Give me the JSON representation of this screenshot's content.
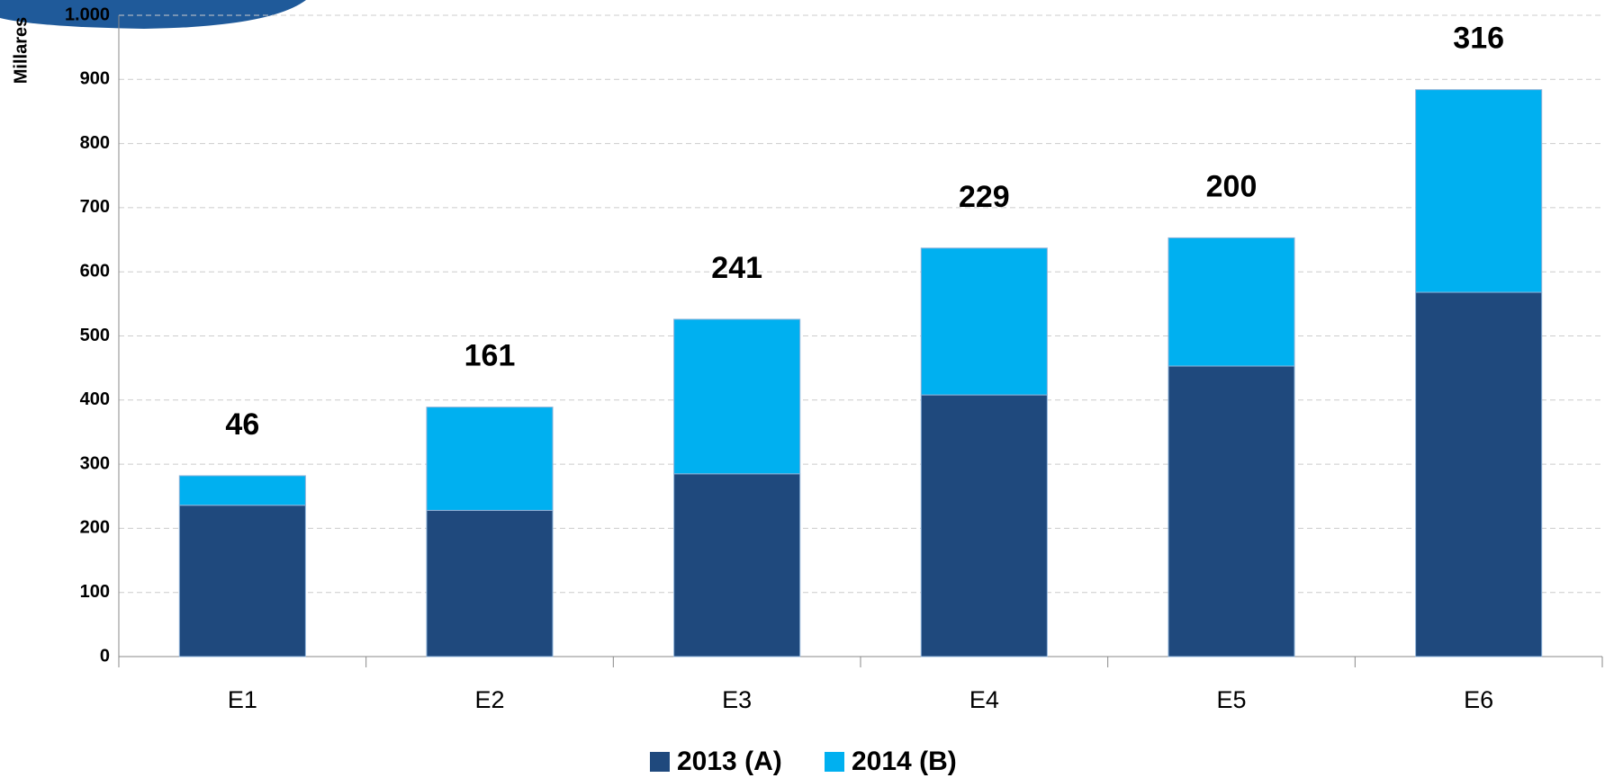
{
  "chart_data": {
    "type": "stacked_bar",
    "y_label": "Millares",
    "categories": [
      "E1",
      "E2",
      "E3",
      "E4",
      "E5",
      "E6"
    ],
    "series": [
      {
        "name": "2013 (A)",
        "color": "#1f497d",
        "values": [
          236,
          228,
          285,
          408,
          453,
          568
        ]
      },
      {
        "name": "2014 (B)",
        "color": "#00b0f0",
        "values": [
          46,
          161,
          241,
          229,
          200,
          316
        ]
      }
    ],
    "data_labels_series": 1,
    "ylim": [
      0,
      1000
    ],
    "yticks": [
      0,
      100,
      200,
      300,
      400,
      500,
      600,
      700,
      800,
      900,
      {
        "value": 1000,
        "label": "1.000"
      }
    ],
    "grid": true,
    "legend": "bottom"
  }
}
